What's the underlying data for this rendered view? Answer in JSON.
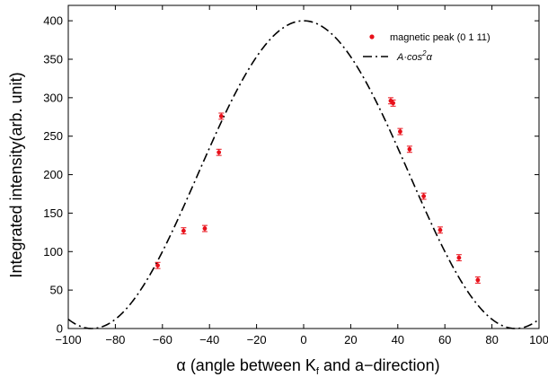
{
  "chart_data": {
    "type": "scatter",
    "xlabel": "α (angle between K",
    "xlabel_sub": "f",
    "xlabel_end": " and a−direction)",
    "ylabel": "Integrated intensity(arb. unit)",
    "xlim": [
      -100,
      100
    ],
    "ylim": [
      0,
      420
    ],
    "xticks": [
      -100,
      -80,
      -60,
      -40,
      -20,
      0,
      20,
      40,
      60,
      80,
      100
    ],
    "yticks": [
      0,
      50,
      100,
      150,
      200,
      250,
      300,
      350,
      400
    ],
    "grid": false,
    "legend_position": "top-right",
    "series": [
      {
        "name": "magnetic peak (0 1 11)",
        "kind": "points-with-errorbars",
        "color": "#e8101a",
        "error": 4,
        "points": [
          {
            "x": -62,
            "y": 82
          },
          {
            "x": -51,
            "y": 127
          },
          {
            "x": -42,
            "y": 130
          },
          {
            "x": -36,
            "y": 229
          },
          {
            "x": -35,
            "y": 276
          },
          {
            "x": 37,
            "y": 296
          },
          {
            "x": 38,
            "y": 293
          },
          {
            "x": 41,
            "y": 256
          },
          {
            "x": 45,
            "y": 233
          },
          {
            "x": 51,
            "y": 172
          },
          {
            "x": 58,
            "y": 128
          },
          {
            "x": 66,
            "y": 92
          },
          {
            "x": 74,
            "y": 63
          }
        ]
      },
      {
        "name_prefix": "A·cos",
        "name_sup": "2",
        "name_suffix": "α",
        "kind": "dash-dot-line",
        "color": "#000000",
        "function": "A*cos^2(alpha)",
        "A": 400
      }
    ]
  }
}
